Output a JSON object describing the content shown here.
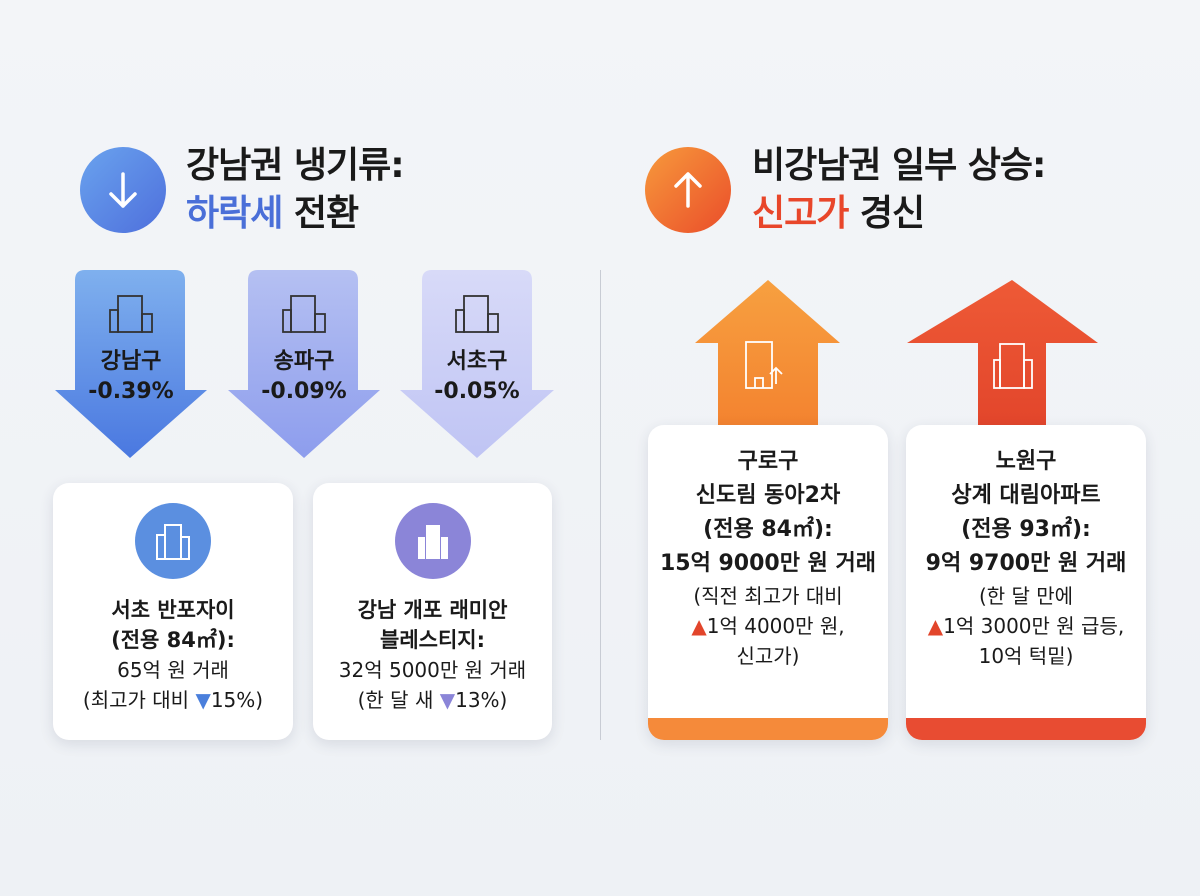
{
  "left": {
    "title_line1": "강남권 냉기류:",
    "title_accent": "하락세",
    "title_rest": " 전환",
    "icon": "arrow-down-icon",
    "accent_color": "#4a6fd8",
    "districts": [
      {
        "name": "강남구",
        "change": "-0.39%",
        "color": "#5b8ee6"
      },
      {
        "name": "송파구",
        "change": "-0.09%",
        "color": "#96a6ee"
      },
      {
        "name": "서초구",
        "change": "-0.05%",
        "color": "#c5c8f6"
      }
    ],
    "cards": [
      {
        "title1": "서초 반포자이",
        "title2": "(전용 84㎡):",
        "price": "65억 원 거래",
        "note_pre": "(최고가 대비 ",
        "marker": "▼",
        "note_post": "15%)",
        "color": "#5b8fe0"
      },
      {
        "title1": "강남 개포 래미안",
        "title2": "블레스티지:",
        "price": "32억 5000만 원 거래",
        "note_pre": "(한 달 새 ",
        "marker": "▼",
        "note_post": "13%)",
        "color": "#8b85d8"
      }
    ]
  },
  "right": {
    "title_line1": "비강남권 일부 상승:",
    "title_accent": "신고가",
    "title_rest": " 경신",
    "icon": "arrow-up-icon",
    "accent_color": "#e8462a",
    "cards": [
      {
        "district": "구로구",
        "apt": "신도림 동아2차",
        "area": "(전용 84㎡):",
        "price": "15억 9000만 원 거래",
        "l1": "(직전 최고가 대비",
        "marker": "▲",
        "l2": "1억 4000만 원,",
        "l3": "신고가)",
        "color": "#f58a3a"
      },
      {
        "district": "노원구",
        "apt": "상계 대림아파트",
        "area": "(전용 93㎡):",
        "price": "9억 9700만 원 거래",
        "l1": "(한 달 만에",
        "marker": "▲",
        "l2": "1억 3000만 원 급등,",
        "l3": "10억 턱밑)",
        "color": "#e84c32"
      }
    ]
  }
}
